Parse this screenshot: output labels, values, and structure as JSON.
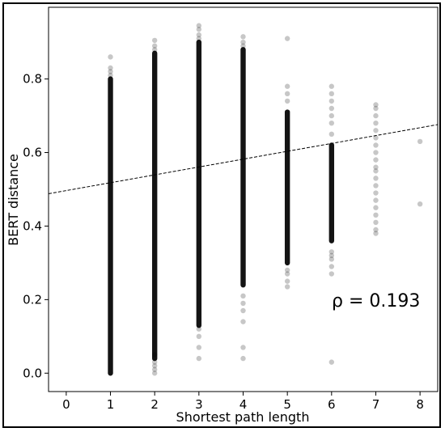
{
  "chart_data": {
    "type": "scatter",
    "xlabel": "Shortest path length",
    "ylabel": "BERT distance",
    "xlim": [
      -0.4,
      8.4
    ],
    "ylim": [
      -0.05,
      0.995
    ],
    "xticks": [
      "0",
      "1",
      "2",
      "3",
      "4",
      "5",
      "6",
      "7",
      "8"
    ],
    "yticks": [
      "0.0",
      "0.2",
      "0.4",
      "0.6",
      "0.8"
    ],
    "annotation": "ρ = 0.193",
    "point_color": "#000000",
    "grid": false,
    "trendline": {
      "style": "dashed",
      "x": [
        -0.4,
        8.4
      ],
      "y": [
        0.488,
        0.676
      ]
    },
    "columns": [
      {
        "x": 1,
        "dense_range": [
          0.0,
          0.8
        ],
        "sparse_points": [
          0.81,
          0.82,
          0.83,
          0.86
        ]
      },
      {
        "x": 2,
        "dense_range": [
          0.04,
          0.87
        ],
        "sparse_points": [
          0.0,
          0.01,
          0.02,
          0.03,
          0.05,
          0.88,
          0.89,
          0.905
        ]
      },
      {
        "x": 3,
        "dense_range": [
          0.13,
          0.9
        ],
        "sparse_points": [
          0.04,
          0.07,
          0.1,
          0.12,
          0.91,
          0.92,
          0.935,
          0.945
        ]
      },
      {
        "x": 4,
        "dense_range": [
          0.24,
          0.88
        ],
        "sparse_points": [
          0.04,
          0.07,
          0.14,
          0.17,
          0.19,
          0.21,
          0.89,
          0.9,
          0.915
        ]
      },
      {
        "x": 5,
        "dense_range": [
          0.3,
          0.71
        ],
        "sparse_points": [
          0.235,
          0.25,
          0.27,
          0.28,
          0.74,
          0.76,
          0.78,
          0.91
        ]
      },
      {
        "x": 6,
        "dense_range": [
          0.36,
          0.62
        ],
        "sparse_points": [
          0.03,
          0.27,
          0.29,
          0.31,
          0.32,
          0.33,
          0.65,
          0.68,
          0.7,
          0.72,
          0.74,
          0.76,
          0.78
        ]
      },
      {
        "x": 7,
        "dense_range": null,
        "sparse_points": [
          0.38,
          0.39,
          0.41,
          0.43,
          0.45,
          0.47,
          0.49,
          0.51,
          0.53,
          0.55,
          0.56,
          0.58,
          0.6,
          0.62,
          0.64,
          0.66,
          0.68,
          0.7,
          0.72,
          0.73
        ]
      },
      {
        "x": 8,
        "dense_range": null,
        "sparse_points": [
          0.46,
          0.63
        ]
      }
    ]
  }
}
